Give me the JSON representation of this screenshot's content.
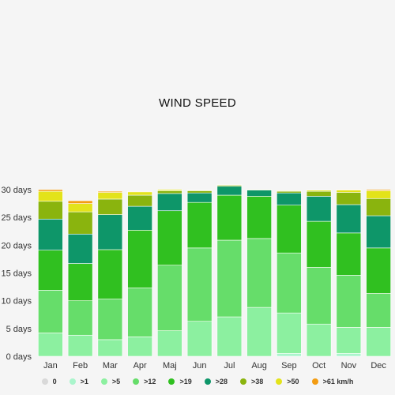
{
  "chart_data": {
    "type": "bar",
    "stacked": true,
    "title": "WIND SPEED",
    "xlabel": "",
    "ylabel": "",
    "ylim": [
      0,
      30
    ],
    "y_ticks": [
      "0 days",
      "5 days",
      "10 days",
      "15 days",
      "20 days",
      "25 days",
      "30 days"
    ],
    "y_tick_values": [
      0,
      5,
      10,
      15,
      20,
      25,
      30
    ],
    "grid": false,
    "legend_position": "bottom",
    "categories": [
      "Jan",
      "Feb",
      "Mar",
      "Apr",
      "Maj",
      "Jun",
      "Jul",
      "Aug",
      "Sep",
      "Oct",
      "Nov",
      "Dec"
    ],
    "series": [
      {
        "name": "0",
        "color": "#d9d9d9",
        "values": [
          0,
          0,
          0,
          0,
          0,
          0,
          0,
          0,
          0,
          0,
          0,
          0
        ]
      },
      {
        "name": ">1",
        "color": "#aaf5cc",
        "values": [
          0,
          0,
          0,
          0,
          0,
          0,
          0,
          0,
          0.5,
          0,
          0.5,
          0
        ]
      },
      {
        "name": ">5",
        "color": "#8cf0a0",
        "values": [
          4.2,
          3.8,
          3.0,
          3.5,
          4.6,
          6.3,
          7.1,
          8.8,
          7.3,
          5.8,
          4.7,
          5.2
        ]
      },
      {
        "name": ">12",
        "color": "#66dd6a",
        "values": [
          7.7,
          6.2,
          7.3,
          8.8,
          11.8,
          13.2,
          13.8,
          12.4,
          10.8,
          10.2,
          9.4,
          6.1
        ]
      },
      {
        "name": ">19",
        "color": "#30c020",
        "values": [
          7.2,
          6.7,
          8.9,
          10.4,
          9.8,
          8.2,
          8.1,
          7.6,
          8.6,
          8.3,
          7.6,
          8.2
        ]
      },
      {
        "name": ">28",
        "color": "#0e9669",
        "values": [
          5.6,
          5.3,
          6.3,
          4.3,
          3.1,
          1.7,
          1.6,
          1.1,
          2.2,
          4.5,
          5.1,
          5.8
        ]
      },
      {
        "name": ">38",
        "color": "#8ab40e",
        "values": [
          3.2,
          4.0,
          2.8,
          2.0,
          0.5,
          0.4,
          0.2,
          0.1,
          0.3,
          0.9,
          2.2,
          3.1
        ]
      },
      {
        "name": ">50",
        "color": "#e3e31a",
        "values": [
          1.8,
          1.5,
          1.2,
          0.6,
          0.2,
          0.1,
          0.1,
          0,
          0.1,
          0.2,
          0.4,
          1.4
        ]
      },
      {
        "name": ">61 km/h",
        "color": "#f39c12",
        "values": [
          0.3,
          0.5,
          0.2,
          0.1,
          0,
          0,
          0,
          0,
          0,
          0,
          0.1,
          0.2
        ]
      }
    ]
  }
}
